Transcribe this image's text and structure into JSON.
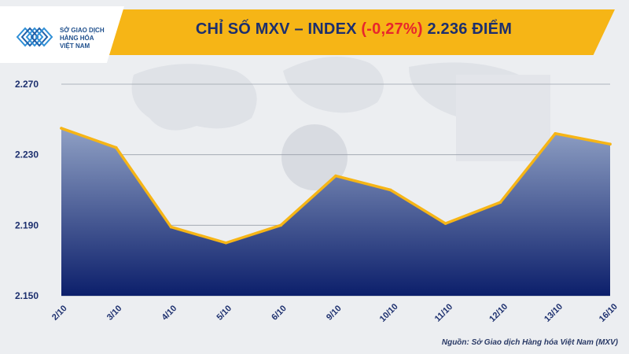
{
  "logo": {
    "line1": "SỞ GIAO DỊCH",
    "line2": "HÀNG HÓA",
    "line3": "VIỆT NAM"
  },
  "title": {
    "prefix": "CHỈ SỐ MXV – INDEX ",
    "change": "(-0,27%)",
    "suffix": " 2.236 ĐIỂM"
  },
  "colors": {
    "accent": "#f6b516",
    "line": "#f6b516",
    "area_top": "#8fa0c4",
    "area_bottom": "#0c1f6b",
    "negative": "#e8262c"
  },
  "chart_data": {
    "type": "area",
    "categories": [
      "2/10",
      "3/10",
      "4/10",
      "5/10",
      "6/10",
      "9/10",
      "10/10",
      "11/10",
      "12/10",
      "13/10",
      "16/10"
    ],
    "series": [
      {
        "values": [
          2245,
          2234,
          2189,
          2180,
          2190,
          2218,
          2210,
          2191,
          2203,
          2242,
          2236
        ]
      }
    ],
    "y_ticks": [
      "2.150",
      "2.190",
      "2.230",
      "2.270"
    ],
    "y_tick_values": [
      2150,
      2190,
      2230,
      2270
    ],
    "ylim": [
      2150,
      2270
    ],
    "grid": true
  },
  "source": "Nguồn: Sở Giao dịch Hàng hóa Việt Nam (MXV)"
}
